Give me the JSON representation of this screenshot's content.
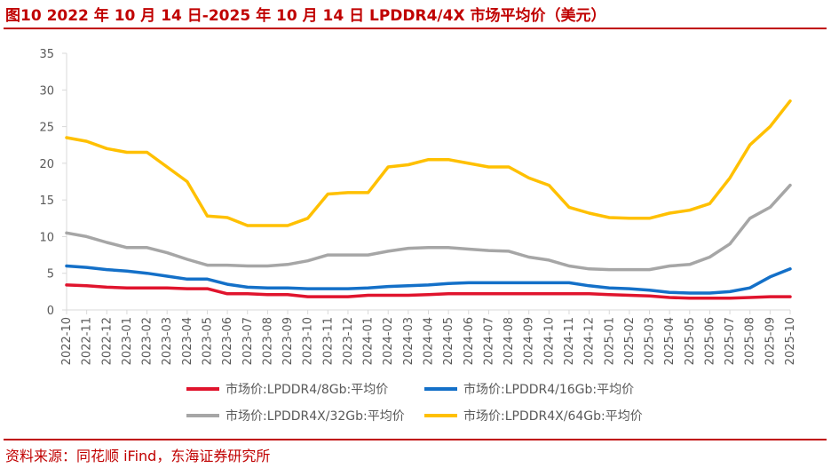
{
  "header": {
    "title": "图10  2022 年 10 月 14 日-2025 年 10 月 14 日 LPDDR4/4X 市场平均价（美元）"
  },
  "footer": {
    "source": "资料来源：同花顺 iFind，东海证券研究所"
  },
  "colors": {
    "brand_red": "#c00000",
    "axis": "#d9d9d9",
    "tick_text": "#595959"
  },
  "chart_data": {
    "type": "line",
    "title": "2022 年 10 月 14 日-2025 年 10 月 14 日 LPDDR4/4X 市场平均价（美元）",
    "xlabel": "",
    "ylabel": "",
    "ylim": [
      0,
      35
    ],
    "yticks": [
      0,
      5,
      10,
      15,
      20,
      25,
      30,
      35
    ],
    "grid": false,
    "legend_position": "bottom",
    "categories": [
      "2022-10",
      "2022-11",
      "2022-12",
      "2023-01",
      "2023-02",
      "2023-03",
      "2023-04",
      "2023-05",
      "2023-06",
      "2023-07",
      "2023-08",
      "2023-09",
      "2023-10",
      "2023-11",
      "2023-12",
      "2024-01",
      "2024-02",
      "2024-03",
      "2024-04",
      "2024-05",
      "2024-06",
      "2024-07",
      "2024-08",
      "2024-09",
      "2024-10",
      "2024-11",
      "2024-12",
      "2025-01",
      "2025-02",
      "2025-03",
      "2025-04",
      "2025-05",
      "2025-06",
      "2025-07",
      "2025-08",
      "2025-09",
      "2025-10"
    ],
    "series": [
      {
        "name": "市场价:LPDDR4/8Gb:平均价",
        "color": "#e0142d",
        "points": [
          [
            0,
            3.4
          ],
          [
            1,
            3.3
          ],
          [
            2,
            3.1
          ],
          [
            3,
            3.0
          ],
          [
            4,
            3.0
          ],
          [
            5,
            3.0
          ],
          [
            6,
            2.9
          ],
          [
            7,
            2.9
          ],
          [
            8,
            2.2
          ],
          [
            9,
            2.2
          ],
          [
            10,
            2.1
          ],
          [
            11,
            2.1
          ],
          [
            12,
            1.8
          ],
          [
            13,
            1.8
          ],
          [
            14,
            1.8
          ],
          [
            15,
            2.0
          ],
          [
            16,
            2.0
          ],
          [
            17,
            2.0
          ],
          [
            18,
            2.1
          ],
          [
            19,
            2.2
          ],
          [
            20,
            2.2
          ],
          [
            21,
            2.2
          ],
          [
            22,
            2.2
          ],
          [
            23,
            2.2
          ],
          [
            24,
            2.2
          ],
          [
            25,
            2.2
          ],
          [
            26,
            2.2
          ],
          [
            27,
            2.1
          ],
          [
            28,
            2.0
          ],
          [
            29,
            1.9
          ],
          [
            30,
            1.7
          ],
          [
            31,
            1.6
          ],
          [
            32,
            1.6
          ],
          [
            33,
            1.6
          ],
          [
            34,
            1.7
          ],
          [
            35,
            1.8
          ],
          [
            36,
            1.8
          ]
        ]
      },
      {
        "name": "市场价:LPDDR4/16Gb:平均价",
        "color": "#1470c8",
        "points": [
          [
            0,
            6.0
          ],
          [
            1,
            5.8
          ],
          [
            2,
            5.5
          ],
          [
            3,
            5.3
          ],
          [
            4,
            5.0
          ],
          [
            5,
            4.6
          ],
          [
            6,
            4.2
          ],
          [
            7,
            4.2
          ],
          [
            8,
            3.5
          ],
          [
            9,
            3.1
          ],
          [
            10,
            3.0
          ],
          [
            11,
            3.0
          ],
          [
            12,
            2.9
          ],
          [
            13,
            2.9
          ],
          [
            14,
            2.9
          ],
          [
            15,
            3.0
          ],
          [
            16,
            3.2
          ],
          [
            17,
            3.3
          ],
          [
            18,
            3.4
          ],
          [
            19,
            3.6
          ],
          [
            20,
            3.7
          ],
          [
            21,
            3.7
          ],
          [
            22,
            3.7
          ],
          [
            23,
            3.7
          ],
          [
            24,
            3.7
          ],
          [
            25,
            3.7
          ],
          [
            26,
            3.3
          ],
          [
            27,
            3.0
          ],
          [
            28,
            2.9
          ],
          [
            29,
            2.7
          ],
          [
            30,
            2.4
          ],
          [
            31,
            2.3
          ],
          [
            32,
            2.3
          ],
          [
            33,
            2.5
          ],
          [
            34,
            3.0
          ],
          [
            35,
            4.5
          ],
          [
            36,
            5.6
          ]
        ]
      },
      {
        "name": "市场价:LPDDR4X/32Gb:平均价",
        "color": "#a6a6a6",
        "points": [
          [
            0,
            10.5
          ],
          [
            1,
            10.0
          ],
          [
            2,
            9.2
          ],
          [
            3,
            8.5
          ],
          [
            4,
            8.5
          ],
          [
            5,
            7.8
          ],
          [
            6,
            6.9
          ],
          [
            7,
            6.1
          ],
          [
            8,
            6.1
          ],
          [
            9,
            6.0
          ],
          [
            10,
            6.0
          ],
          [
            11,
            6.2
          ],
          [
            12,
            6.7
          ],
          [
            13,
            7.5
          ],
          [
            14,
            7.5
          ],
          [
            15,
            7.5
          ],
          [
            16,
            8.0
          ],
          [
            17,
            8.4
          ],
          [
            18,
            8.5
          ],
          [
            19,
            8.5
          ],
          [
            20,
            8.3
          ],
          [
            21,
            8.1
          ],
          [
            22,
            8.0
          ],
          [
            23,
            7.2
          ],
          [
            24,
            6.8
          ],
          [
            25,
            6.0
          ],
          [
            26,
            5.6
          ],
          [
            27,
            5.5
          ],
          [
            28,
            5.5
          ],
          [
            29,
            5.5
          ],
          [
            30,
            6.0
          ],
          [
            31,
            6.2
          ],
          [
            32,
            7.2
          ],
          [
            33,
            9.0
          ],
          [
            34,
            12.5
          ],
          [
            35,
            14.0
          ],
          [
            36,
            17.0
          ]
        ]
      },
      {
        "name": "市场价:LPDDR4X/64Gb:平均价",
        "color": "#ffc000",
        "points": [
          [
            0,
            23.5
          ],
          [
            1,
            23.0
          ],
          [
            2,
            22.0
          ],
          [
            3,
            21.5
          ],
          [
            4,
            21.5
          ],
          [
            5,
            19.5
          ],
          [
            6,
            17.5
          ],
          [
            7,
            12.8
          ],
          [
            8,
            12.6
          ],
          [
            9,
            11.5
          ],
          [
            10,
            11.5
          ],
          [
            11,
            11.5
          ],
          [
            12,
            12.5
          ],
          [
            13,
            15.8
          ],
          [
            14,
            16.0
          ],
          [
            15,
            16.0
          ],
          [
            16,
            19.5
          ],
          [
            17,
            19.8
          ],
          [
            18,
            20.5
          ],
          [
            19,
            20.5
          ],
          [
            20,
            20.0
          ],
          [
            21,
            19.5
          ],
          [
            22,
            19.5
          ],
          [
            23,
            18.0
          ],
          [
            24,
            17.0
          ],
          [
            25,
            14.0
          ],
          [
            26,
            13.2
          ],
          [
            27,
            12.6
          ],
          [
            28,
            12.5
          ],
          [
            29,
            12.5
          ],
          [
            30,
            13.2
          ],
          [
            31,
            13.6
          ],
          [
            32,
            14.5
          ],
          [
            33,
            18.0
          ],
          [
            34,
            22.5
          ],
          [
            35,
            25.0
          ],
          [
            36,
            28.5
          ]
        ]
      }
    ]
  }
}
